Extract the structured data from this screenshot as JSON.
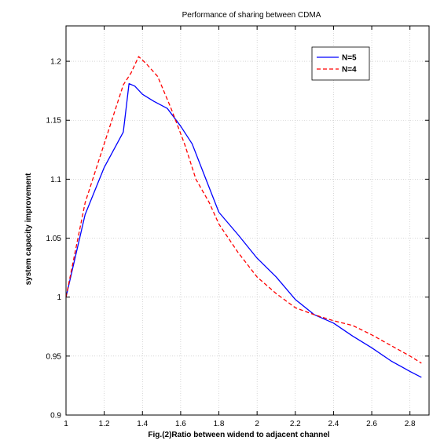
{
  "chart_data": {
    "type": "line",
    "title": "Performance of sharing between CDMA",
    "xlabel": "Fig.(2)Ratio between widend to adjacent channel",
    "ylabel": "system capacity improvement",
    "xlim": [
      1,
      2.9
    ],
    "ylim": [
      0.9,
      1.23
    ],
    "xticks": [
      1,
      1.2,
      1.4,
      1.6,
      1.8,
      2,
      2.2,
      2.4,
      2.6,
      2.8
    ],
    "xtick_labels": [
      "1",
      "1.2",
      "1.4",
      "1.6",
      "1.8",
      "2",
      "2.2",
      "2.4",
      "2.6",
      "2.8"
    ],
    "yticks": [
      0.9,
      0.95,
      1.0,
      1.05,
      1.1,
      1.15,
      1.2
    ],
    "ytick_labels": [
      "0.9",
      "0.95",
      "1",
      "1.05",
      "1.1",
      "1.15",
      "1.2"
    ],
    "grid": true,
    "legend_position": "top-right",
    "series": [
      {
        "name": "N=5",
        "color": "#0000ff",
        "dash": "solid",
        "x": [
          1.0,
          1.1,
          1.2,
          1.3,
          1.33,
          1.36,
          1.4,
          1.46,
          1.53,
          1.6,
          1.66,
          1.72,
          1.8,
          1.9,
          2.0,
          2.1,
          2.2,
          2.3,
          2.4,
          2.5,
          2.6,
          2.7,
          2.8,
          2.86
        ],
        "y": [
          1.0,
          1.07,
          1.11,
          1.14,
          1.181,
          1.179,
          1.172,
          1.166,
          1.16,
          1.145,
          1.13,
          1.105,
          1.072,
          1.053,
          1.033,
          1.017,
          0.998,
          0.985,
          0.978,
          0.967,
          0.957,
          0.946,
          0.937,
          0.932
        ]
      },
      {
        "name": "N=4",
        "color": "#ff0000",
        "dash": "dashed",
        "x": [
          1.0,
          1.1,
          1.2,
          1.3,
          1.34,
          1.38,
          1.42,
          1.48,
          1.55,
          1.62,
          1.68,
          1.75,
          1.8,
          1.9,
          2.0,
          2.1,
          2.2,
          2.3,
          2.4,
          2.5,
          2.6,
          2.7,
          2.8,
          2.86
        ],
        "y": [
          1.0,
          1.08,
          1.13,
          1.18,
          1.19,
          1.204,
          1.198,
          1.187,
          1.16,
          1.13,
          1.1,
          1.08,
          1.062,
          1.038,
          1.017,
          1.003,
          0.991,
          0.985,
          0.98,
          0.976,
          0.968,
          0.959,
          0.95,
          0.944
        ]
      }
    ]
  }
}
